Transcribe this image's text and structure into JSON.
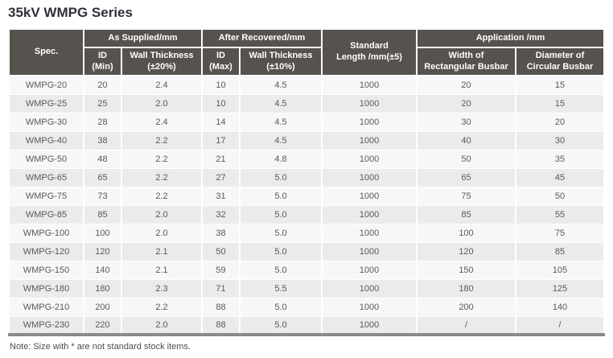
{
  "title": "35kV WMPG Series",
  "note": "Note: Size with * are not standard stock items.",
  "colors": {
    "header_bg": "#56524e",
    "header_text": "#ffffff",
    "row_odd_bg": "#f7f7f7",
    "row_even_bg": "#ebebeb",
    "title_text": "#31303a",
    "body_text": "#595959",
    "bottom_border": "#8a8a8a"
  },
  "table": {
    "header": {
      "spec": "Spec.",
      "as_supplied": "As Supplied/mm",
      "after_recovered": "After Recovered/mm",
      "standard_length": "Standard\nLength /mm(±5)",
      "application": "Application /mm",
      "id_min": "ID\n(Min)",
      "wall_thickness_20": "Wall Thickness\n(±20%)",
      "id_max": "ID\n(Max)",
      "wall_thickness_10": "Wall Thickness\n(±10%)",
      "width_rectangular_busbar": "Width of\nRectangular Busbar",
      "diameter_circular_busbar": "Diameter of\nCircular Busbar"
    },
    "rows": [
      [
        "WMPG-20",
        "20",
        "2.4",
        "10",
        "4.5",
        "1000",
        "20",
        "15"
      ],
      [
        "WMPG-25",
        "25",
        "2.0",
        "10",
        "4.5",
        "1000",
        "20",
        "15"
      ],
      [
        "WMPG-30",
        "28",
        "2.4",
        "14",
        "4.5",
        "1000",
        "30",
        "20"
      ],
      [
        "WMPG-40",
        "38",
        "2.2",
        "17",
        "4.5",
        "1000",
        "40",
        "30"
      ],
      [
        "WMPG-50",
        "48",
        "2.2",
        "21",
        "4.8",
        "1000",
        "50",
        "35"
      ],
      [
        "WMPG-65",
        "65",
        "2.2",
        "27",
        "5.0",
        "1000",
        "65",
        "45"
      ],
      [
        "WMPG-75",
        "73",
        "2.2",
        "31",
        "5.0",
        "1000",
        "75",
        "50"
      ],
      [
        "WMPG-85",
        "85",
        "2.0",
        "32",
        "5.0",
        "1000",
        "85",
        "55"
      ],
      [
        "WMPG-100",
        "100",
        "2.0",
        "38",
        "5.0",
        "1000",
        "100",
        "75"
      ],
      [
        "WMPG-120",
        "120",
        "2.1",
        "50",
        "5.0",
        "1000",
        "120",
        "85"
      ],
      [
        "WMPG-150",
        "140",
        "2.1",
        "59",
        "5.0",
        "1000",
        "150",
        "105"
      ],
      [
        "WMPG-180",
        "180",
        "2.3",
        "71",
        "5.5",
        "1000",
        "180",
        "125"
      ],
      [
        "WMPG-210",
        "200",
        "2.2",
        "88",
        "5.0",
        "1000",
        "200",
        "140"
      ],
      [
        "WMPG-230",
        "220",
        "2.0",
        "88",
        "5.0",
        "1000",
        "/",
        "/"
      ]
    ]
  }
}
